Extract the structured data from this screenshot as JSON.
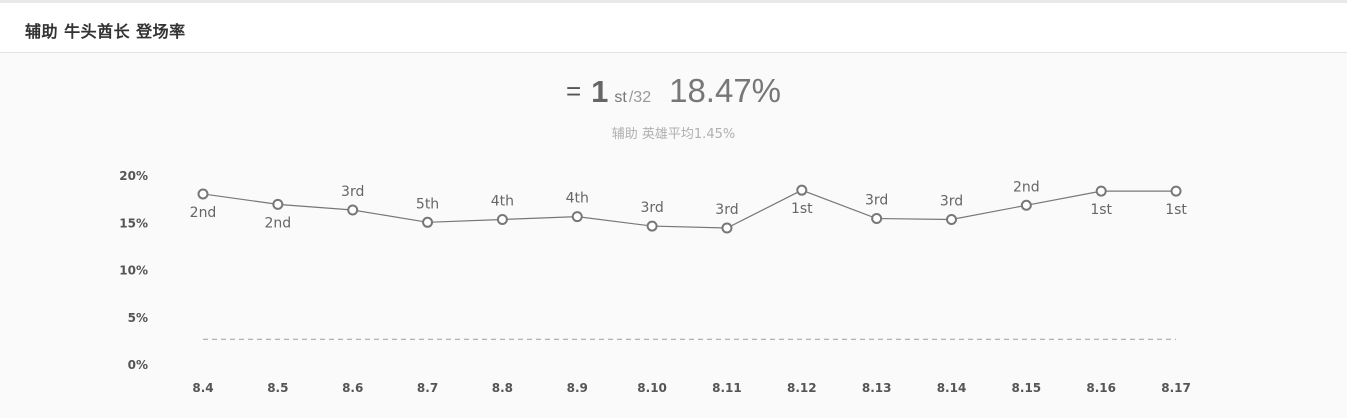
{
  "header": {
    "title": "辅助 牛头酋长 登场率"
  },
  "summary": {
    "trend_symbol": "=",
    "rank": "1",
    "rank_suffix": "st",
    "rank_total": "/32",
    "rate": "18.47%",
    "subtitle": "辅助 英雄平均1.45%"
  },
  "colors": {
    "line": "#777777",
    "point_fill": "#ffffff",
    "average_line": "#aaaaaa"
  },
  "chart_data": {
    "type": "line",
    "categories": [
      "8.4",
      "8.5",
      "8.6",
      "8.7",
      "8.8",
      "8.9",
      "8.10",
      "8.11",
      "8.12",
      "8.13",
      "8.14",
      "8.15",
      "8.16",
      "8.17"
    ],
    "series": [
      {
        "values": [
          18.1,
          17.0,
          16.4,
          15.1,
          15.4,
          15.7,
          14.7,
          14.5,
          18.5,
          15.5,
          15.4,
          16.9,
          18.4,
          18.4
        ],
        "labels": [
          "2nd",
          "2nd",
          "3rd",
          "5th",
          "4th",
          "4th",
          "3rd",
          "3rd",
          "1st",
          "3rd",
          "3rd",
          "2nd",
          "1st",
          "1st"
        ],
        "label_positions": [
          "below",
          "below",
          "above",
          "above",
          "above",
          "above",
          "above",
          "above",
          "below",
          "above",
          "above",
          "above",
          "below",
          "below"
        ]
      }
    ],
    "average_line": 1.45,
    "yticks": [
      "20%",
      "15%",
      "10%",
      "5%",
      "0%"
    ],
    "ytick_values": [
      20,
      15,
      10,
      5,
      0
    ],
    "ylim": [
      0,
      20
    ],
    "grid": false
  }
}
